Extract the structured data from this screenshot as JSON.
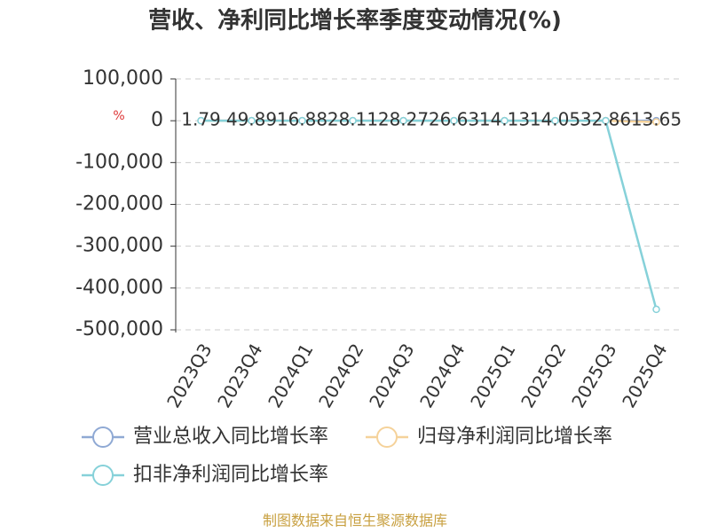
{
  "chart_data": {
    "type": "line",
    "title": "营收、净利同比增长率季度变动情况(%)",
    "y_label": "%",
    "source": "制图数据来自恒生聚源数据库",
    "categories": [
      "2023Q3",
      "2023Q4",
      "2024Q1",
      "2024Q2",
      "2024Q3",
      "2024Q4",
      "2025Q1",
      "2025Q2",
      "2025Q3",
      "2025Q4"
    ],
    "series": [
      {
        "name": "营业总收入同比增长率",
        "color": "#8fa9d4",
        "values": [
          1.79,
          49.89,
          16.88,
          28.11,
          28.27,
          26.63,
          14.13,
          14.05,
          32.86,
          13.65
        ]
      },
      {
        "name": "归母净利润同比增长率",
        "color": "#f5d29a",
        "values": [
          20,
          30,
          15,
          25,
          20,
          15,
          10,
          10,
          20,
          -3000
        ]
      },
      {
        "name": "扣非净利润同比增长率",
        "color": "#86d1d9",
        "values": [
          20,
          30,
          15,
          25,
          20,
          15,
          10,
          10,
          20,
          -451000
        ]
      }
    ],
    "ylim": [
      -500000,
      100000
    ],
    "yticks": [
      {
        "value": 100000,
        "label": "100,000"
      },
      0,
      {
        "value": -100000,
        "label": "-100,000"
      },
      {
        "value": -200000,
        "label": "-200,000"
      },
      {
        "value": -300000,
        "label": "-300,000"
      },
      {
        "value": -400000,
        "label": "-400,000"
      },
      {
        "value": -500000,
        "label": "-500,000"
      }
    ],
    "grid": true
  }
}
